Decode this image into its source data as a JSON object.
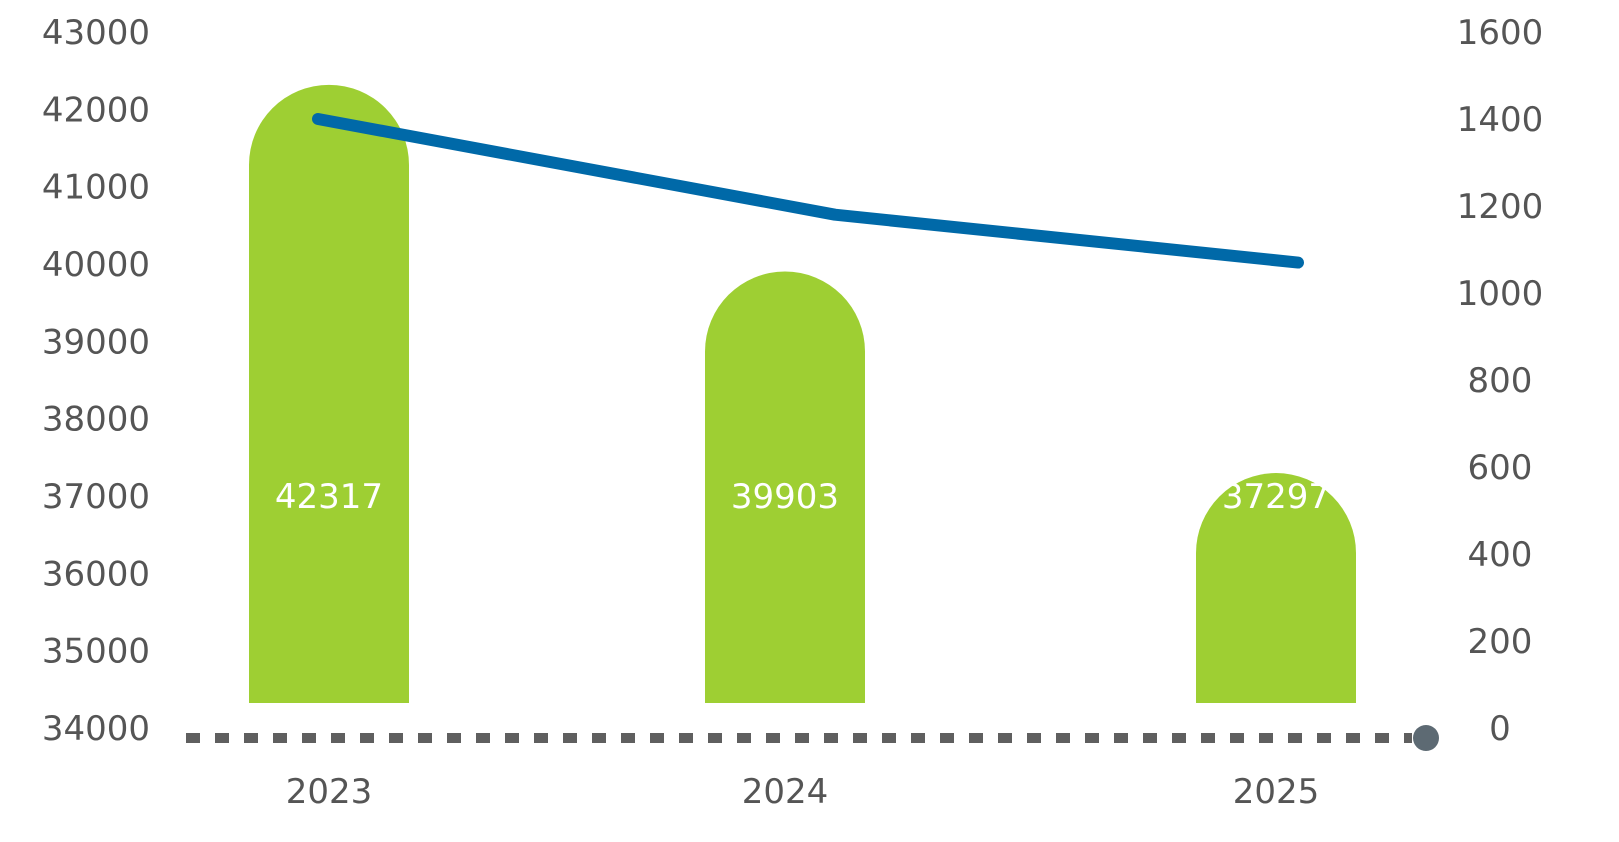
{
  "chart_data": {
    "type": "bar",
    "categories": [
      "2023",
      "2024",
      "2025"
    ],
    "series": [
      {
        "type": "bar",
        "axis": "left",
        "values": [
          42317,
          39903,
          37297
        ]
      },
      {
        "type": "line",
        "axis": "right",
        "values": [
          1400,
          1180,
          1070
        ]
      }
    ],
    "y_left": {
      "range": [
        34000,
        43000
      ],
      "ticks": [
        "34000",
        "35000",
        "36000",
        "37000",
        "38000",
        "39000",
        "40000",
        "41000",
        "42000",
        "43000"
      ]
    },
    "y_right": {
      "range": [
        0,
        1600
      ],
      "ticks": [
        "0",
        "200",
        "400",
        "600",
        "800",
        "1000",
        "1200",
        "1400",
        "1600"
      ]
    },
    "data_labels": [
      "42317",
      "39903",
      "37297"
    ],
    "grid": false,
    "legend": "none",
    "colors": {
      "bar": "#9ecf33",
      "line": "#0069a8",
      "axis": "#5f5f5f",
      "axis_end": "#5d6a73",
      "text": "#555555"
    }
  }
}
